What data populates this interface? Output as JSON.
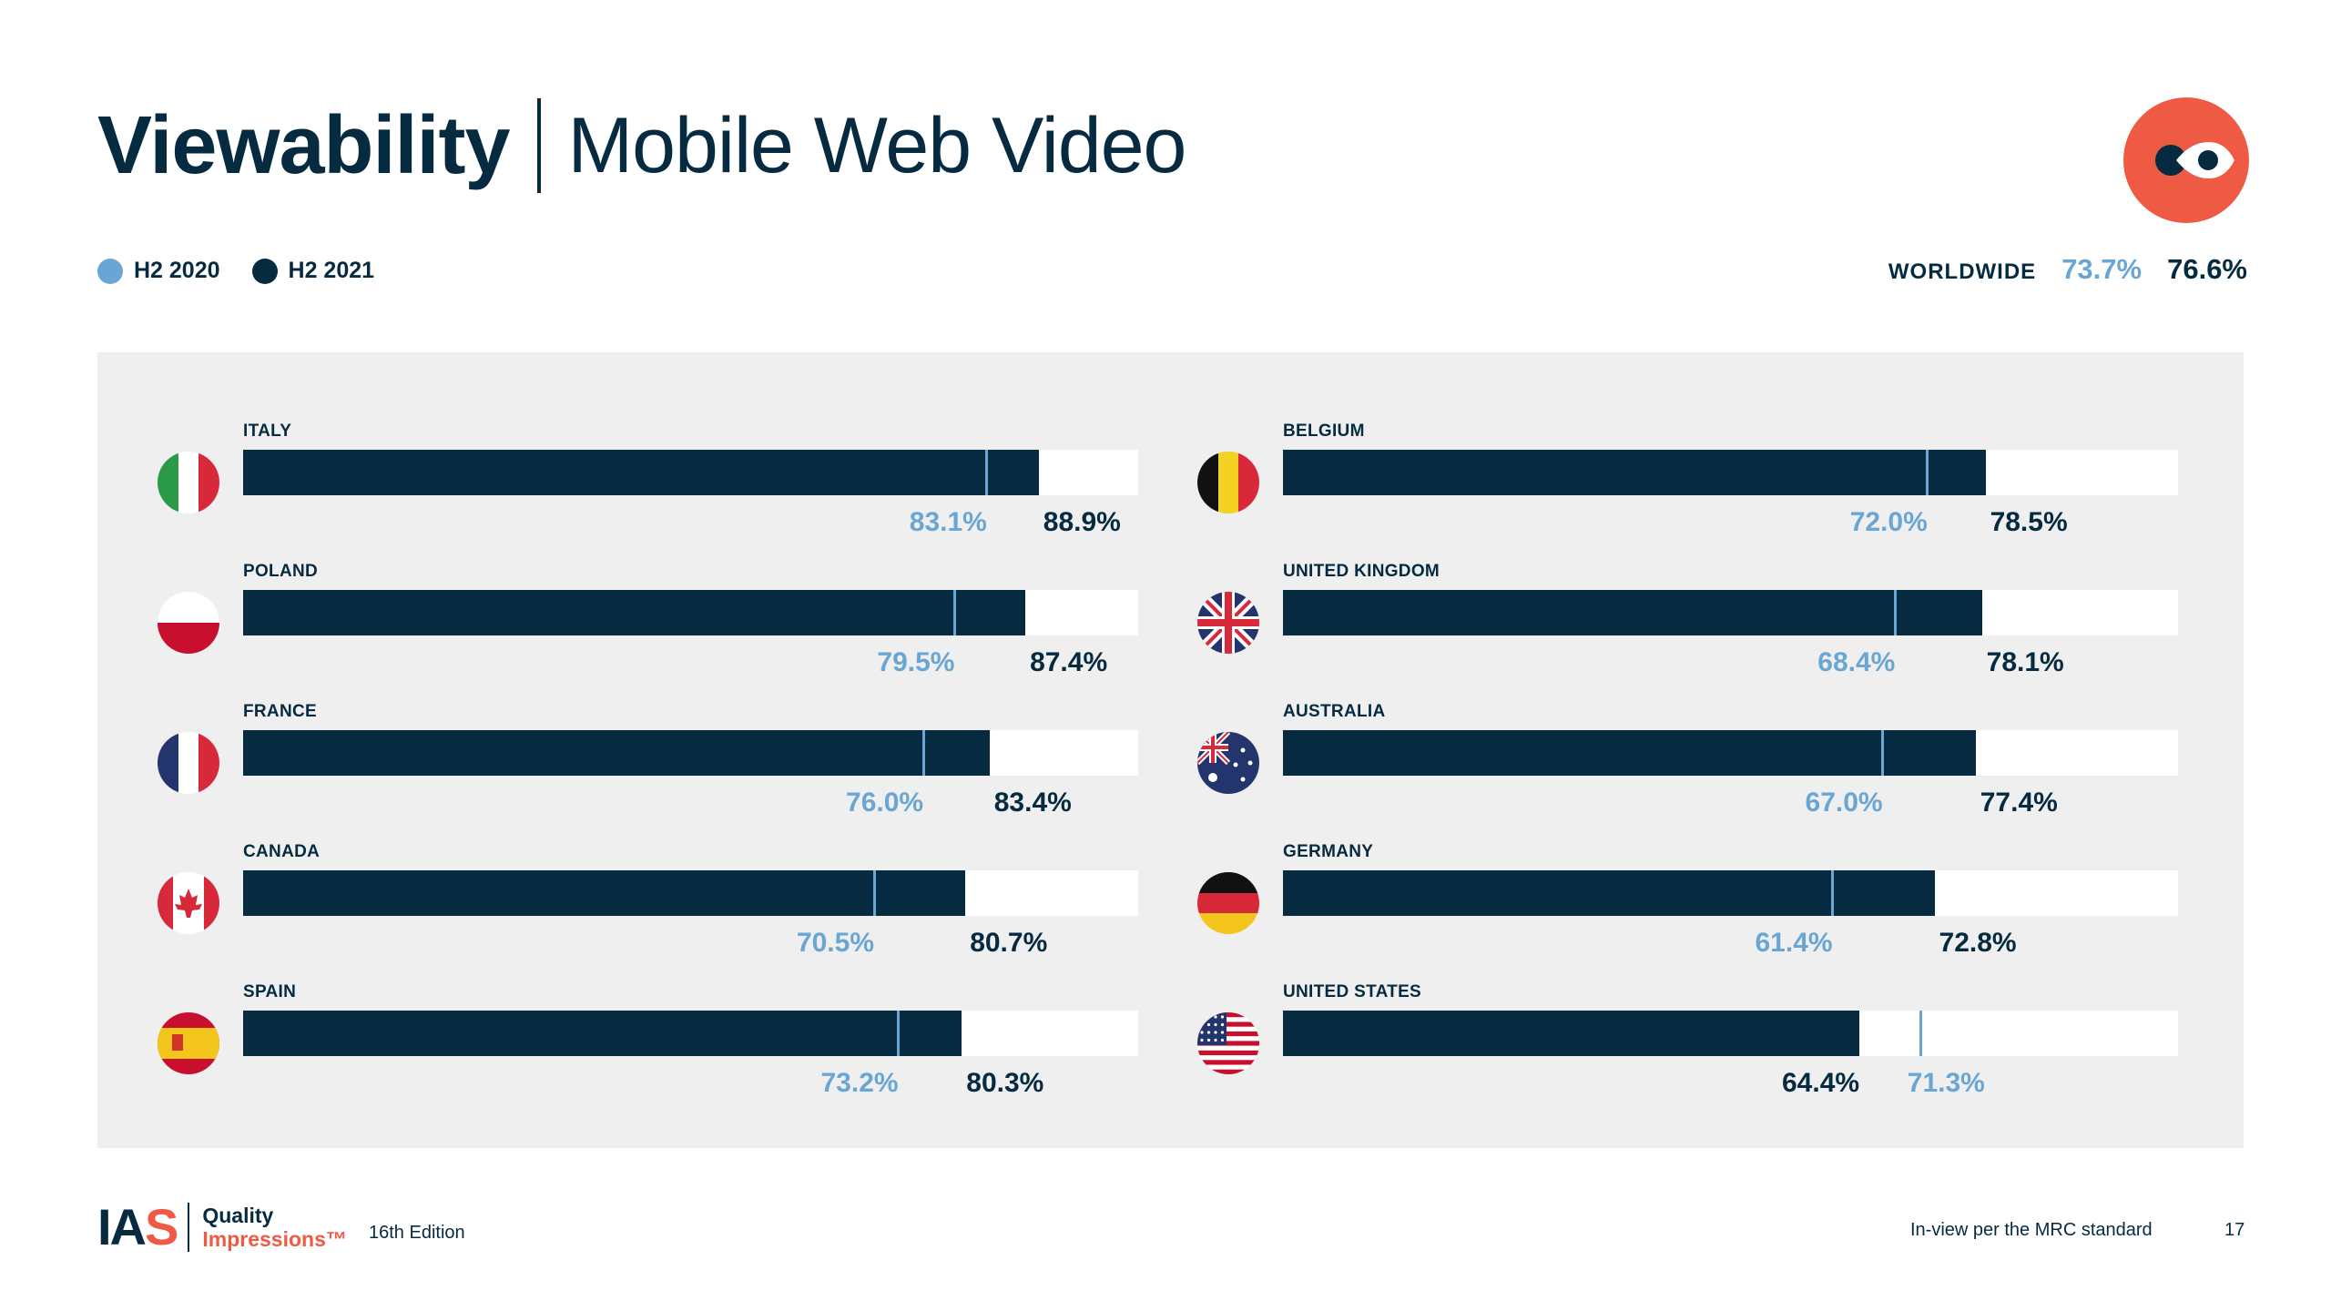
{
  "header": {
    "title_bold": "Viewability",
    "title_light": "Mobile Web Video",
    "badge_icon": "eye-icon"
  },
  "legend": [
    {
      "label": "H2 2020",
      "color": "#6aa6d4"
    },
    {
      "label": "H2 2021",
      "color": "#062a40"
    }
  ],
  "worldwide": {
    "label": "WORLDWIDE",
    "h2_2020": "73.7%",
    "h2_2021": "76.6%"
  },
  "chart_data": {
    "type": "bar",
    "orientation": "horizontal",
    "xlim": [
      0,
      100
    ],
    "series": [
      {
        "name": "H2 2020",
        "color": "#6aa6d4"
      },
      {
        "name": "H2 2021",
        "color": "#062a40"
      }
    ],
    "columns": [
      {
        "rows": [
          {
            "country": "ITALY",
            "flag": "italy-flag-icon",
            "h2_2020": 83.1,
            "h2_2021": 88.9
          },
          {
            "country": "POLAND",
            "flag": "poland-flag-icon",
            "h2_2020": 79.5,
            "h2_2021": 87.4
          },
          {
            "country": "FRANCE",
            "flag": "france-flag-icon",
            "h2_2020": 76.0,
            "h2_2021": 83.4
          },
          {
            "country": "CANADA",
            "flag": "canada-flag-icon",
            "h2_2020": 70.5,
            "h2_2021": 80.7
          },
          {
            "country": "SPAIN",
            "flag": "spain-flag-icon",
            "h2_2020": 73.2,
            "h2_2021": 80.3
          }
        ]
      },
      {
        "rows": [
          {
            "country": "BELGIUM",
            "flag": "belgium-flag-icon",
            "h2_2020": 72.0,
            "h2_2021": 78.5
          },
          {
            "country": "UNITED KINGDOM",
            "flag": "uk-flag-icon",
            "h2_2020": 68.4,
            "h2_2021": 78.1
          },
          {
            "country": "AUSTRALIA",
            "flag": "australia-flag-icon",
            "h2_2020": 67.0,
            "h2_2021": 77.4
          },
          {
            "country": "GERMANY",
            "flag": "germany-flag-icon",
            "h2_2020": 61.4,
            "h2_2021": 72.8
          },
          {
            "country": "UNITED STATES",
            "flag": "us-flag-icon",
            "h2_2020": 71.3,
            "h2_2021": 64.4
          }
        ]
      }
    ]
  },
  "footer": {
    "logo_text_1": "IA",
    "logo_text_2": "S",
    "quality": "Quality",
    "impressions": "Impressions™",
    "edition": "16th Edition",
    "note": "In-view per the MRC standard",
    "page_number": "17"
  }
}
